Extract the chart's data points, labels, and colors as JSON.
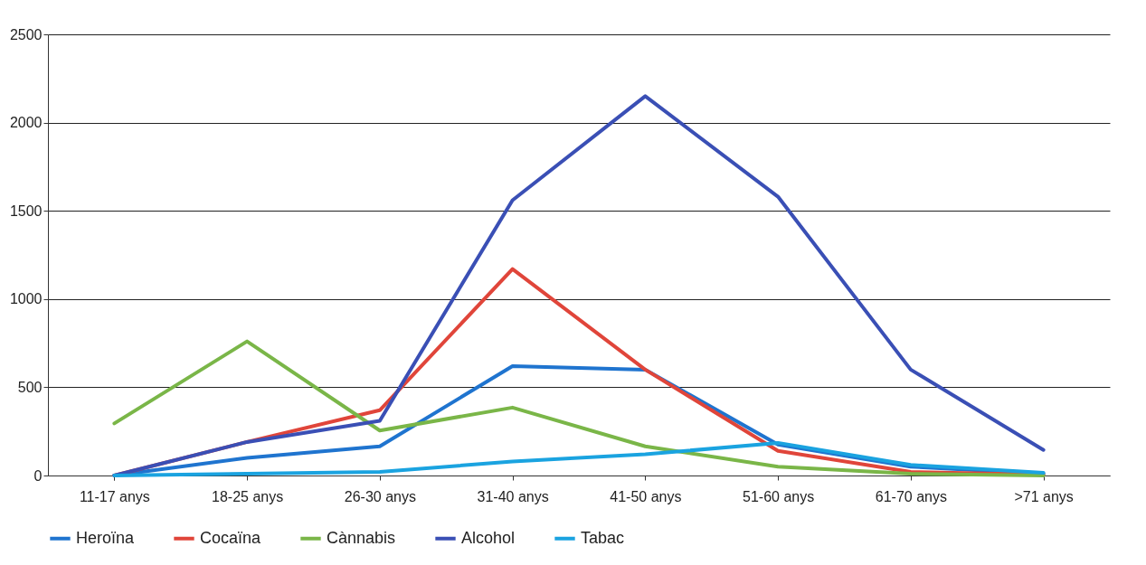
{
  "chart_data": {
    "type": "line",
    "categories": [
      "11-17 anys",
      "18-25 anys",
      "26-30 anys",
      "31-40 anys",
      "41-50 anys",
      "51-60 anys",
      "61-70 anys",
      ">71 anys"
    ],
    "series": [
      {
        "name": "Heroïna",
        "color": "#1f74cf",
        "values": [
          0,
          100,
          165,
          620,
          600,
          175,
          50,
          10
        ]
      },
      {
        "name": "Cocaïna",
        "color": "#e0453a",
        "values": [
          0,
          190,
          370,
          1170,
          600,
          140,
          20,
          5
        ]
      },
      {
        "name": "Cànnabis",
        "color": "#7ab648",
        "values": [
          295,
          760,
          255,
          385,
          165,
          50,
          10,
          0
        ]
      },
      {
        "name": "Alcohol",
        "color": "#3a4fb5",
        "values": [
          0,
          190,
          310,
          1560,
          2150,
          1580,
          600,
          145
        ]
      },
      {
        "name": "Tabac",
        "color": "#1aa3e0",
        "values": [
          0,
          10,
          20,
          80,
          120,
          185,
          60,
          15
        ]
      }
    ],
    "ylim": [
      0,
      2500
    ],
    "yticks": [
      0,
      500,
      1000,
      1500,
      2000,
      2500
    ],
    "grid": "y",
    "legend": "bottom",
    "marker": "none",
    "line_style": "solid"
  }
}
